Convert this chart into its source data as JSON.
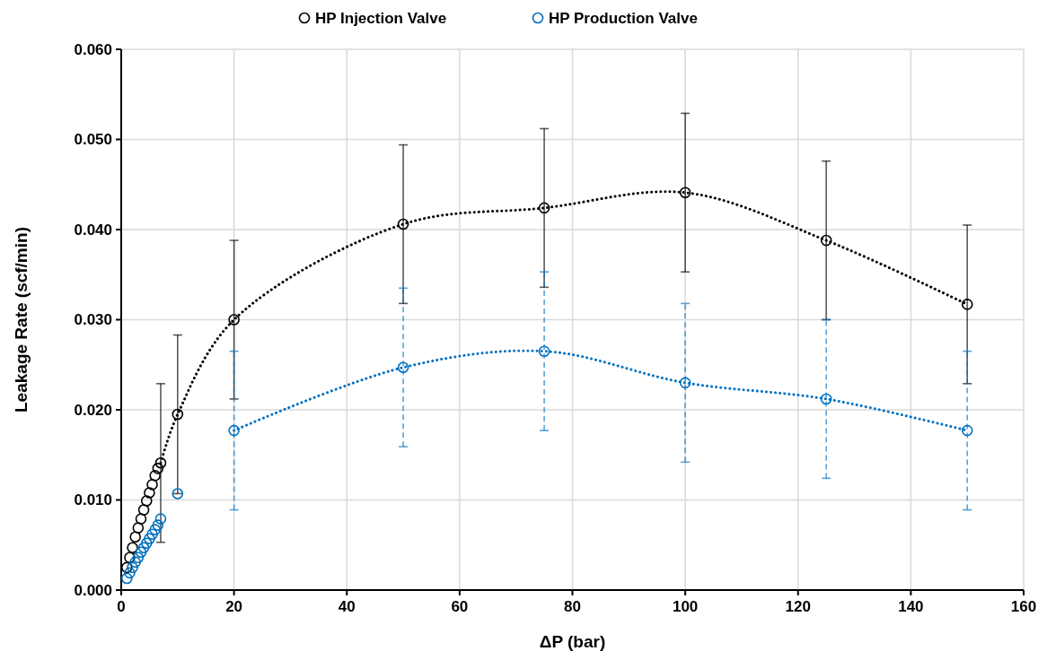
{
  "chart_data": {
    "type": "scatter",
    "xlabel": "ΔP (bar)",
    "ylabel": "Leakage Rate (scf/min)",
    "xlim": [
      0,
      160
    ],
    "xticks": [
      0,
      20,
      40,
      60,
      80,
      100,
      120,
      140,
      160
    ],
    "ylim": [
      0,
      0.06
    ],
    "yticks": [
      {
        "value": 0,
        "label": "0.000"
      },
      {
        "value": 0.01,
        "label": "0.010"
      },
      {
        "value": 0.02,
        "label": "0.020"
      },
      {
        "value": 0.03,
        "label": "0.030"
      },
      {
        "value": 0.04,
        "label": "0.040"
      },
      {
        "value": 0.05,
        "label": "0.050"
      },
      {
        "value": 0.06,
        "label": "0.060"
      }
    ],
    "grid": true,
    "legend": "top",
    "marker": "circle",
    "series": [
      {
        "type": "line",
        "color": "#000000",
        "line_style": "dotted",
        "marker": "none",
        "x": [
          7,
          10,
          20,
          50,
          75,
          100,
          125,
          150
        ],
        "values": [
          0.0141,
          0.0195,
          0.03,
          0.0406,
          0.0424,
          0.0441,
          0.0388,
          0.0317
        ]
      },
      {
        "type": "line",
        "color": "#0070c0",
        "line_style": "dotted",
        "marker": "none",
        "x": [
          20,
          50,
          75,
          100,
          125,
          150
        ],
        "values": [
          0.0177,
          0.0247,
          0.0265,
          0.023,
          0.0212,
          0.0177
        ]
      },
      {
        "name": "HP Injection Valve",
        "color": "#000000",
        "x": [
          1,
          1.5,
          2,
          2.5,
          3,
          3.5,
          4,
          4.5,
          5,
          5.5,
          6,
          6.5,
          7,
          10,
          20,
          50,
          75,
          100,
          125,
          150
        ],
        "values": [
          0.0025,
          0.0036,
          0.0047,
          0.0059,
          0.0069,
          0.0079,
          0.0089,
          0.0099,
          0.0108,
          0.0117,
          0.0127,
          0.0135,
          0.0141,
          0.0195,
          0.03,
          0.0406,
          0.0424,
          0.0441,
          0.0388,
          0.0317
        ],
        "errors": [
          null,
          null,
          null,
          null,
          null,
          null,
          null,
          null,
          null,
          null,
          null,
          null,
          0.0088,
          0.0088,
          0.0088,
          0.0088,
          0.0088,
          0.0088,
          0.0088,
          0.0088
        ],
        "line_style": "solid"
      },
      {
        "name": "HP Production Valve",
        "color": "#0070c0",
        "x": [
          1,
          1.5,
          2,
          2.5,
          3,
          3.5,
          4,
          4.5,
          5,
          5.5,
          6,
          6.5,
          7,
          10,
          20,
          50,
          75,
          100,
          125,
          150
        ],
        "values": [
          0.0013,
          0.0019,
          0.0025,
          0.0031,
          0.0036,
          0.0042,
          0.0047,
          0.0052,
          0.0057,
          0.0062,
          0.0067,
          0.0072,
          0.0079,
          0.0107,
          0.0177,
          0.0247,
          0.0265,
          0.023,
          0.0212,
          0.0177
        ],
        "errors": [
          null,
          null,
          null,
          null,
          null,
          null,
          null,
          null,
          null,
          null,
          null,
          null,
          null,
          null,
          0.0088,
          0.0088,
          0.0088,
          0.0088,
          0.0088,
          0.0088
        ],
        "line_style": "dashed"
      }
    ]
  }
}
